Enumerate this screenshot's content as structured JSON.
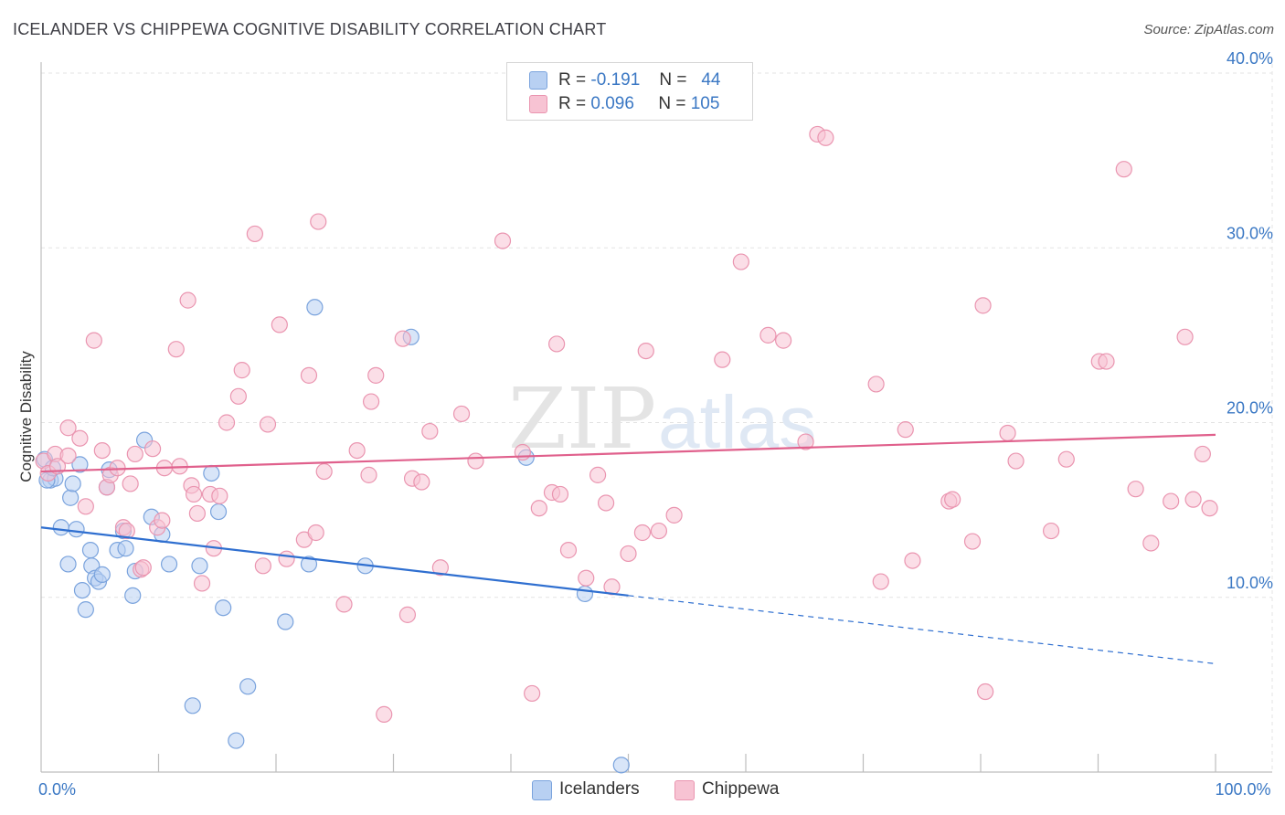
{
  "title": "ICELANDER VS CHIPPEWA COGNITIVE DISABILITY CORRELATION CHART",
  "source": "Source: ZipAtlas.com",
  "watermark": {
    "zip": "ZIP",
    "atlas": "atlas"
  },
  "colors": {
    "icelanders_fill": "#b8d0f2",
    "icelanders_stroke": "#7aa3dd",
    "icelanders_line": "#2f6fd0",
    "chippewa_fill": "#f7c3d3",
    "chippewa_stroke": "#ea95b0",
    "chippewa_line": "#e0608c",
    "value_text": "#3b78c4",
    "grid": "#e3e3e3"
  },
  "legend_top": {
    "rows": [
      {
        "series": "icelanders",
        "r_label": "R =",
        "r_value": "-0.191",
        "n_label": "N =",
        "n_value": "44"
      },
      {
        "series": "chippewa",
        "r_label": "R =",
        "r_value": "0.096",
        "n_label": "N =",
        "n_value": "105"
      }
    ]
  },
  "legend_bottom": {
    "icelanders": "Icelanders",
    "chippewa": "Chippewa"
  },
  "chart_data": {
    "type": "scatter",
    "ylabel": "Cognitive Disability",
    "xlabel": "",
    "xlim": [
      0,
      100
    ],
    "ylim": [
      0,
      40
    ],
    "y_ticks": [
      {
        "value": 10,
        "label": "10.0%"
      },
      {
        "value": 20,
        "label": "20.0%"
      },
      {
        "value": 30,
        "label": "30.0%"
      },
      {
        "value": 40,
        "label": "40.0%"
      }
    ],
    "x_tick_labels": [
      {
        "value": 0,
        "label": "0.0%"
      },
      {
        "value": 100,
        "label": "100.0%"
      }
    ],
    "x_minor_ticks": [
      10,
      20,
      30,
      40,
      50,
      60,
      70,
      80,
      90,
      100
    ],
    "grid": true,
    "legend_position": "top-center",
    "series": [
      {
        "name": "Icelanders",
        "key": "icelanders",
        "trend": {
          "x0": 0,
          "y0": 14.0,
          "x1": 50,
          "y1": 10.1,
          "dashed_to": 100,
          "dashed_y": 6.2
        },
        "points": [
          [
            0.3,
            17.9
          ],
          [
            0.8,
            16.7
          ],
          [
            1.2,
            16.8
          ],
          [
            1.7,
            14.0
          ],
          [
            2.3,
            11.9
          ],
          [
            2.5,
            15.7
          ],
          [
            2.7,
            16.5
          ],
          [
            3.0,
            13.9
          ],
          [
            3.3,
            17.6
          ],
          [
            3.5,
            10.4
          ],
          [
            3.8,
            9.3
          ],
          [
            4.2,
            12.7
          ],
          [
            4.3,
            11.8
          ],
          [
            4.6,
            11.1
          ],
          [
            4.9,
            10.9
          ],
          [
            5.2,
            11.3
          ],
          [
            5.6,
            16.3
          ],
          [
            5.8,
            17.3
          ],
          [
            6.5,
            12.7
          ],
          [
            7.0,
            13.8
          ],
          [
            7.2,
            12.8
          ],
          [
            7.8,
            10.1
          ],
          [
            8.0,
            11.5
          ],
          [
            8.8,
            19.0
          ],
          [
            9.4,
            14.6
          ],
          [
            10.3,
            13.6
          ],
          [
            10.9,
            11.9
          ],
          [
            12.9,
            3.8
          ],
          [
            13.5,
            11.8
          ],
          [
            14.5,
            17.1
          ],
          [
            15.1,
            14.9
          ],
          [
            15.5,
            9.4
          ],
          [
            16.6,
            1.8
          ],
          [
            17.6,
            4.9
          ],
          [
            20.8,
            8.6
          ],
          [
            22.8,
            11.9
          ],
          [
            23.3,
            26.6
          ],
          [
            27.6,
            11.8
          ],
          [
            31.5,
            24.9
          ],
          [
            41.3,
            18.0
          ],
          [
            46.3,
            10.2
          ],
          [
            49.4,
            0.4
          ],
          [
            0.5,
            16.7
          ],
          [
            1.0,
            17.4
          ]
        ]
      },
      {
        "name": "Chippewa",
        "key": "chippewa",
        "trend": {
          "x0": 0,
          "y0": 17.2,
          "x1": 100,
          "y1": 19.3
        },
        "points": [
          [
            0.2,
            17.8
          ],
          [
            0.6,
            17.1
          ],
          [
            1.2,
            18.2
          ],
          [
            1.4,
            17.5
          ],
          [
            2.3,
            18.1
          ],
          [
            2.3,
            19.7
          ],
          [
            3.3,
            19.1
          ],
          [
            3.8,
            15.2
          ],
          [
            4.5,
            24.7
          ],
          [
            5.2,
            18.4
          ],
          [
            5.6,
            16.3
          ],
          [
            5.9,
            17.0
          ],
          [
            6.5,
            17.4
          ],
          [
            7.0,
            14.0
          ],
          [
            7.3,
            13.8
          ],
          [
            7.6,
            16.5
          ],
          [
            8.0,
            18.2
          ],
          [
            8.5,
            11.6
          ],
          [
            8.7,
            11.7
          ],
          [
            9.5,
            18.5
          ],
          [
            9.9,
            14.0
          ],
          [
            10.3,
            14.4
          ],
          [
            10.5,
            17.4
          ],
          [
            11.5,
            24.2
          ],
          [
            11.8,
            17.5
          ],
          [
            12.5,
            27.0
          ],
          [
            12.8,
            16.4
          ],
          [
            13.0,
            15.9
          ],
          [
            13.3,
            14.8
          ],
          [
            13.7,
            10.8
          ],
          [
            14.4,
            15.9
          ],
          [
            14.7,
            12.8
          ],
          [
            15.2,
            15.8
          ],
          [
            15.8,
            20.0
          ],
          [
            16.8,
            21.5
          ],
          [
            17.1,
            23.0
          ],
          [
            18.2,
            30.8
          ],
          [
            18.9,
            11.8
          ],
          [
            19.3,
            19.9
          ],
          [
            20.3,
            25.6
          ],
          [
            20.9,
            12.2
          ],
          [
            22.4,
            13.3
          ],
          [
            22.8,
            22.7
          ],
          [
            23.4,
            13.7
          ],
          [
            23.6,
            31.5
          ],
          [
            24.1,
            17.2
          ],
          [
            25.8,
            9.6
          ],
          [
            26.9,
            18.4
          ],
          [
            27.9,
            17.0
          ],
          [
            28.1,
            21.2
          ],
          [
            28.5,
            22.7
          ],
          [
            29.2,
            3.3
          ],
          [
            30.8,
            24.8
          ],
          [
            31.2,
            9.0
          ],
          [
            31.6,
            16.8
          ],
          [
            32.4,
            16.6
          ],
          [
            33.1,
            19.5
          ],
          [
            34.0,
            11.7
          ],
          [
            35.8,
            20.5
          ],
          [
            37.0,
            17.8
          ],
          [
            39.3,
            30.4
          ],
          [
            41.0,
            18.3
          ],
          [
            41.8,
            4.5
          ],
          [
            42.4,
            15.1
          ],
          [
            43.5,
            16.0
          ],
          [
            43.9,
            24.5
          ],
          [
            44.2,
            15.9
          ],
          [
            44.9,
            12.7
          ],
          [
            46.4,
            11.1
          ],
          [
            47.4,
            17.0
          ],
          [
            48.1,
            15.4
          ],
          [
            48.6,
            10.6
          ],
          [
            50.0,
            12.5
          ],
          [
            51.2,
            13.7
          ],
          [
            51.5,
            24.1
          ],
          [
            52.6,
            13.8
          ],
          [
            53.9,
            14.7
          ],
          [
            58.0,
            23.6
          ],
          [
            59.6,
            29.2
          ],
          [
            61.9,
            25.0
          ],
          [
            63.2,
            24.7
          ],
          [
            65.1,
            18.9
          ],
          [
            66.1,
            36.5
          ],
          [
            66.8,
            36.3
          ],
          [
            71.1,
            22.2
          ],
          [
            71.5,
            10.9
          ],
          [
            73.6,
            19.6
          ],
          [
            74.2,
            12.1
          ],
          [
            77.3,
            15.5
          ],
          [
            77.6,
            15.6
          ],
          [
            79.3,
            13.2
          ],
          [
            80.2,
            26.7
          ],
          [
            80.4,
            4.6
          ],
          [
            82.3,
            19.4
          ],
          [
            83.0,
            17.8
          ],
          [
            86.0,
            13.8
          ],
          [
            87.3,
            17.9
          ],
          [
            90.1,
            23.5
          ],
          [
            90.7,
            23.5
          ],
          [
            92.2,
            34.5
          ],
          [
            93.2,
            16.2
          ],
          [
            94.5,
            13.1
          ],
          [
            96.2,
            15.5
          ],
          [
            97.4,
            24.9
          ],
          [
            98.1,
            15.6
          ],
          [
            99.5,
            15.1
          ],
          [
            98.9,
            18.2
          ]
        ]
      }
    ]
  }
}
